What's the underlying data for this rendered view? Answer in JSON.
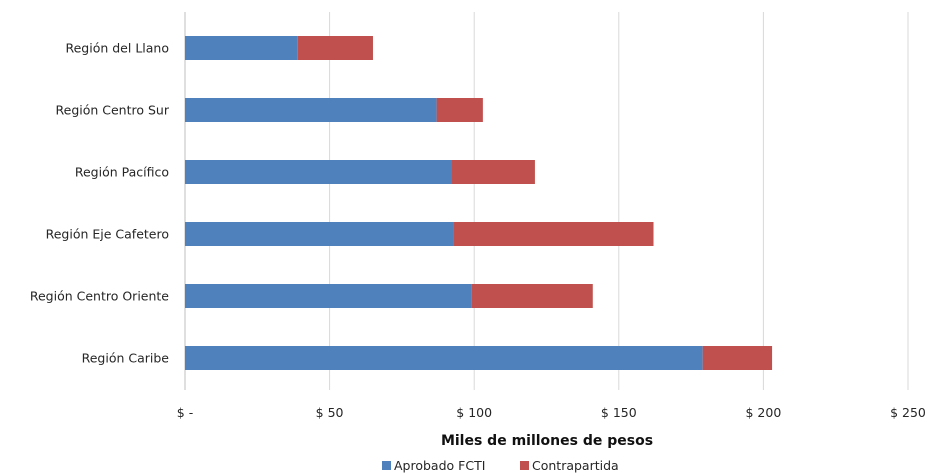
{
  "chart_data": {
    "type": "bar",
    "orientation": "horizontal",
    "stacked": true,
    "categories": [
      "Región Caribe",
      "Región Centro Oriente",
      "Región Eje Cafetero",
      "Región Pacífico",
      "Región Centro Sur",
      "Región del Llano"
    ],
    "series": [
      {
        "name": "Aprobado FCTI",
        "color": "#4F81BD",
        "values": [
          179,
          99,
          93,
          92,
          87,
          39
        ]
      },
      {
        "name": "Contrapartida",
        "color": "#C0504D",
        "values": [
          24,
          42,
          69,
          29,
          16,
          26
        ]
      }
    ],
    "xlim": [
      0,
      250
    ],
    "xticks": [
      0,
      50,
      100,
      150,
      200,
      250
    ],
    "xtick_labels": [
      "$ -",
      "$ 50",
      "$ 100",
      "$ 150",
      "$ 200",
      "$ 250"
    ],
    "xlabel": "Miles de millones de pesos",
    "ylabel": "",
    "title": "",
    "grid": "vertical",
    "legend": "bottom"
  }
}
